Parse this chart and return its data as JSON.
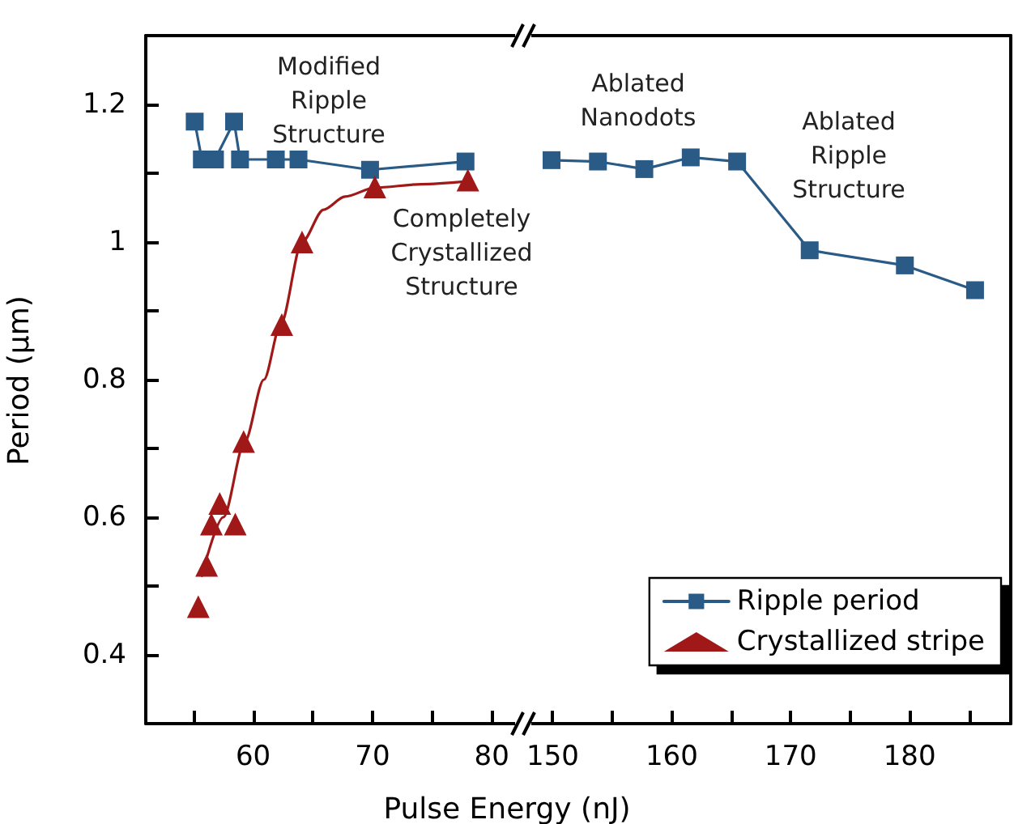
{
  "chart_data": [
    {
      "type": "line",
      "xlabel": "Pulse Energy (nJ)",
      "ylabel": "Period (µm)",
      "xlim": [
        51,
        82.5
      ],
      "xticks": [
        {
          "value": 55,
          "label": null
        },
        60,
        {
          "value": 65,
          "label": null
        },
        70,
        {
          "value": 75,
          "label": null
        },
        80
      ],
      "ylim": [
        0.3,
        1.3
      ],
      "yticks": [
        0.4,
        {
          "value": 0.5,
          "label": null
        },
        0.6,
        {
          "value": 0.7,
          "label": null
        },
        0.8,
        {
          "value": 0.9,
          "label": null
        },
        1.0,
        {
          "value": 1.1,
          "label": null
        },
        1.2
      ],
      "grid": false,
      "legend": "bottom right",
      "series": [
        {
          "name": "Ripple period",
          "color": "#2a5a86",
          "marker": "square",
          "line_style": "solid",
          "x": [
            55.1,
            55.7,
            56.8,
            58.4,
            58.9,
            61.9,
            63.8,
            69.8,
            77.8
          ],
          "values": [
            1.175,
            1.12,
            1.12,
            1.175,
            1.12,
            1.12,
            1.12,
            1.105,
            1.117
          ]
        },
        {
          "name": "Crystallized stripe",
          "type": "scatter",
          "color": "#a01818",
          "marker": "triangle",
          "x": [
            55.4,
            56.1,
            56.5,
            57.2,
            58.5,
            59.2,
            62.4,
            64.1,
            70.2,
            78.0
          ],
          "values": [
            0.47,
            0.53,
            0.59,
            0.62,
            0.59,
            0.71,
            0.88,
            1.0,
            1.08,
            1.09
          ]
        },
        {
          "type": "line",
          "color": "#a01818",
          "marker": "none",
          "line_style": "solid",
          "x": [
            55.7,
            57.5,
            59.3,
            60.9,
            62.3,
            64.1,
            65.9,
            67.7,
            70.2,
            74.1,
            77.9
          ],
          "values": [
            0.515,
            0.6,
            0.71,
            0.8,
            0.88,
            1.0,
            1.047,
            1.066,
            1.079,
            1.084,
            1.088
          ]
        }
      ],
      "annotations": [
        "Modified\nRipple\nStructure",
        "Completely\nCrystallized\nStructure"
      ]
    },
    {
      "type": "line",
      "tick_labels": "x",
      "xlim": [
        147.5,
        188.5
      ],
      "xticks": [
        150,
        {
          "value": 155,
          "label": null
        },
        160,
        {
          "value": 165,
          "label": null
        },
        170,
        {
          "value": 175,
          "label": null
        },
        180,
        {
          "value": 185,
          "label": null
        }
      ],
      "ylim": [
        0.3,
        1.3
      ],
      "grid": false,
      "series": [
        {
          "color": "#2a5a86",
          "marker": "square",
          "line_style": "solid",
          "x": [
            149.9,
            153.8,
            157.7,
            161.6,
            165.5,
            171.6,
            179.6,
            185.5
          ],
          "values": [
            1.119,
            1.117,
            1.106,
            1.123,
            1.117,
            0.988,
            0.966,
            0.93
          ]
        }
      ],
      "annotations": [
        "Ablated\nNanodots",
        "Ablated\nRipple\nStructure"
      ]
    }
  ]
}
